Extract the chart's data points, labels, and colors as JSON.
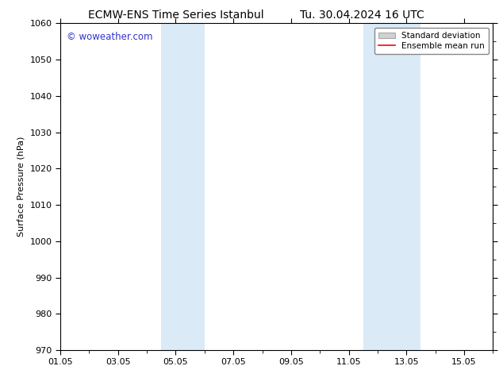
{
  "title_left": "ECMW-ENS Time Series Istanbul",
  "title_right": "Tu. 30.04.2024 16 UTC",
  "ylabel": "Surface Pressure (hPa)",
  "ylim": [
    970,
    1060
  ],
  "yticks": [
    970,
    980,
    990,
    1000,
    1010,
    1020,
    1030,
    1040,
    1050,
    1060
  ],
  "xlim": [
    0,
    15
  ],
  "xtick_labels": [
    "01.05",
    "03.05",
    "05.05",
    "07.05",
    "09.05",
    "11.05",
    "13.05",
    "15.05"
  ],
  "xtick_positions": [
    0,
    2,
    4,
    6,
    8,
    10,
    12,
    14
  ],
  "shaded_regions": [
    {
      "xstart": 3.5,
      "xend": 5.0,
      "color": "#dbeaf7"
    },
    {
      "xstart": 10.5,
      "xend": 12.5,
      "color": "#dbeaf7"
    }
  ],
  "watermark_text": "© woweather.com",
  "watermark_color": "#3333cc",
  "background_color": "#ffffff",
  "plot_bg_color": "#ffffff",
  "title_fontsize": 10,
  "axis_label_fontsize": 8,
  "tick_fontsize": 8,
  "legend_std_color": "#d0d0d0",
  "legend_mean_color": "#ff0000",
  "spine_color": "#000000",
  "minor_tick_color": "#000000"
}
